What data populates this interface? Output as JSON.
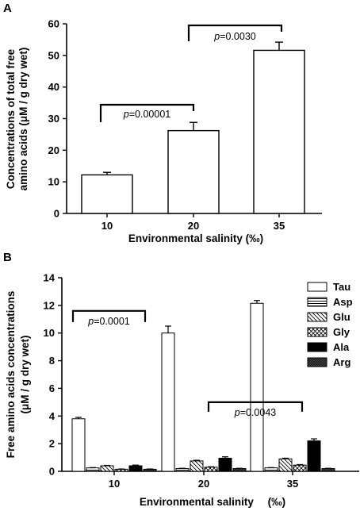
{
  "chart_data": [
    {
      "panel_label": "A",
      "type": "bar",
      "categories": [
        "10",
        "20",
        "35"
      ],
      "values": [
        12.2,
        26.2,
        51.6
      ],
      "errors": [
        0.8,
        2.6,
        2.6
      ],
      "xlabel": "Environmental salinity (‰)",
      "ylabel": "Concentrations of total free amino acids (μM / g dry wet)",
      "ylabel_lines": [
        "Concentrations of total free",
        "amino acids (μM / g dry wet)"
      ],
      "ylim": [
        0,
        60
      ],
      "yticks": [
        0,
        10,
        20,
        30,
        40,
        50,
        60
      ],
      "grid": false,
      "annotations": [
        {
          "prefix": "p",
          "text": "=0.00001",
          "from": "10",
          "to": "20"
        },
        {
          "prefix": "p",
          "text": "=0.0030",
          "from": "20",
          "to": "35"
        }
      ]
    },
    {
      "panel_label": "B",
      "type": "bar",
      "categories": [
        "10",
        "20",
        "35"
      ],
      "series": [
        {
          "name": "Tau",
          "values": [
            3.8,
            10.0,
            12.15
          ],
          "errors": [
            0.1,
            0.5,
            0.2
          ],
          "fill": "white"
        },
        {
          "name": "Asp",
          "values": [
            0.25,
            0.2,
            0.25
          ],
          "errors": [
            0.02,
            0.02,
            0.02
          ],
          "fill": "hlines"
        },
        {
          "name": "Glu",
          "values": [
            0.4,
            0.75,
            0.9
          ],
          "errors": [
            0.03,
            0.05,
            0.05
          ],
          "fill": "diag"
        },
        {
          "name": "Gly",
          "values": [
            0.15,
            0.3,
            0.45
          ],
          "errors": [
            0.02,
            0.03,
            0.04
          ],
          "fill": "cross"
        },
        {
          "name": "Ala",
          "values": [
            0.4,
            0.95,
            2.2
          ],
          "errors": [
            0.05,
            0.1,
            0.15
          ],
          "fill": "black"
        },
        {
          "name": "Arg",
          "values": [
            0.15,
            0.2,
            0.2
          ],
          "errors": [
            0.02,
            0.02,
            0.02
          ],
          "fill": "dense"
        }
      ],
      "xlabel": "Environmental salinity",
      "xlabel_unit": "(‰)",
      "ylabel": "Free amino acids concentrations (μM / g dry wet)",
      "ylabel_lines": [
        "Free amino acids concentrations",
        "(μM / g dry wet)"
      ],
      "ylim": [
        0,
        14
      ],
      "yticks": [
        0,
        2,
        4,
        6,
        8,
        10,
        12,
        14
      ],
      "grid": false,
      "legend_position": "top-right",
      "annotations": [
        {
          "prefix": "p",
          "text": "=0.0001",
          "from": "10",
          "to": "20",
          "at": 11.5
        },
        {
          "prefix": "p",
          "text": "=0.0043",
          "from": "20",
          "to": "35",
          "at": 5.0
        }
      ]
    }
  ]
}
